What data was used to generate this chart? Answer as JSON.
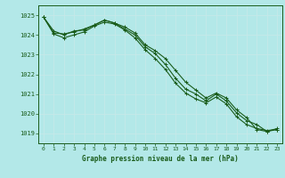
{
  "title": "Graphe pression niveau de la mer (hPa)",
  "background_color": "#b3e8e8",
  "grid_color": "#c5e8e8",
  "line_color": "#1a5c1a",
  "marker_color": "#1a5c1a",
  "xlim": [
    -0.5,
    23.5
  ],
  "ylim": [
    1018.5,
    1025.5
  ],
  "yticks": [
    1019,
    1020,
    1021,
    1022,
    1023,
    1024,
    1025
  ],
  "xticks": [
    0,
    1,
    2,
    3,
    4,
    5,
    6,
    7,
    8,
    9,
    10,
    11,
    12,
    13,
    14,
    15,
    16,
    17,
    18,
    19,
    20,
    21,
    22,
    23
  ],
  "series": [
    {
      "x": [
        0,
        1,
        2,
        3,
        4,
        5,
        6,
        7,
        8,
        9,
        10,
        11,
        12,
        13,
        14,
        15,
        16,
        17,
        18,
        19,
        20,
        21,
        22,
        23
      ],
      "y": [
        1024.9,
        1024.2,
        1024.0,
        1024.2,
        1024.25,
        1024.5,
        1024.75,
        1024.6,
        1024.4,
        1024.1,
        1023.5,
        1023.2,
        1022.8,
        1022.2,
        1021.6,
        1021.2,
        1020.8,
        1021.05,
        1020.8,
        1020.2,
        1019.8,
        1019.2,
        1019.1,
        1019.2
      ]
    },
    {
      "x": [
        0,
        1,
        2,
        3,
        4,
        5,
        6,
        7,
        8,
        9,
        10,
        11,
        12,
        13,
        14,
        15,
        16,
        17,
        18,
        19,
        20,
        21,
        22,
        23
      ],
      "y": [
        1024.9,
        1024.05,
        1023.85,
        1024.0,
        1024.15,
        1024.45,
        1024.65,
        1024.55,
        1024.25,
        1023.85,
        1023.25,
        1022.8,
        1022.25,
        1021.55,
        1021.05,
        1020.75,
        1020.55,
        1020.85,
        1020.5,
        1019.85,
        1019.45,
        1019.25,
        1019.15,
        1019.2
      ]
    },
    {
      "x": [
        0,
        1,
        2,
        3,
        4,
        5,
        6,
        7,
        8,
        9,
        10,
        11,
        12,
        13,
        14,
        15,
        16,
        17,
        18,
        19,
        20,
        21,
        22,
        23
      ],
      "y": [
        1024.9,
        1024.1,
        1024.05,
        1024.15,
        1024.3,
        1024.5,
        1024.75,
        1024.6,
        1024.3,
        1024.0,
        1023.4,
        1023.05,
        1022.5,
        1021.8,
        1021.25,
        1021.0,
        1020.65,
        1021.0,
        1020.65,
        1020.05,
        1019.65,
        1019.45,
        1019.1,
        1019.25
      ]
    }
  ]
}
